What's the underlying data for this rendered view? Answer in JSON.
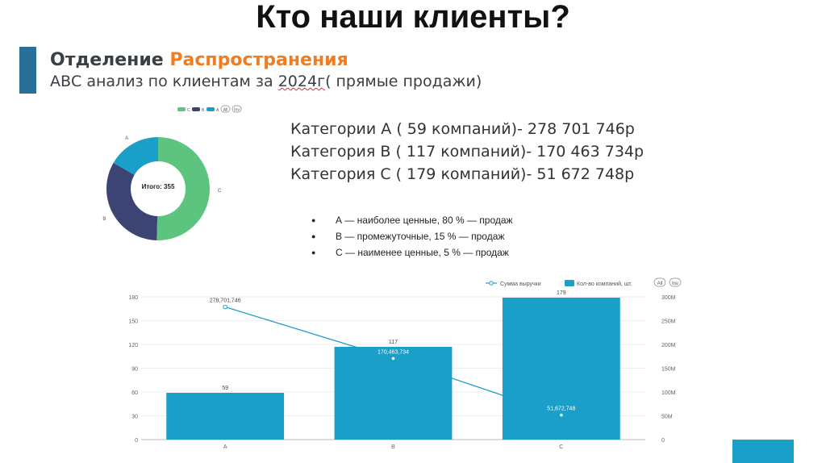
{
  "page": {
    "title": "Кто наши клиенты?",
    "dept_prefix": "Отделение ",
    "dept_highlight": "Распространения",
    "subtitle_start": "АВС анализ по клиентам за ",
    "subtitle_year": "2024г",
    "subtitle_end": "( прямые продажи)"
  },
  "categories_text": [
    "Категории А ( 59 компаний)- 278 701 746р",
    "Категория В ( 117 компаний)- 170 463 734р",
    "Категория С ( 179 компаний)- 51 672 748р"
  ],
  "bullets": [
    "А — наиболее ценные, 80 % — продаж",
    "В — промежуточные, 15 % — продаж",
    "С — наименее ценные, 5 % — продаж"
  ],
  "colors": {
    "accent": "#2a6f9a",
    "highlight": "#ef7d22",
    "pie_c": "#5cc47f",
    "pie_b": "#3b4472",
    "pie_a": "#1aa0c8",
    "bar": "#1aa0c8",
    "line": "#1aa0c8"
  },
  "chart_data": [
    {
      "type": "pie",
      "center_label": "Итого: 355",
      "legend": [
        "C",
        "B",
        "A",
        "All",
        "Inv"
      ],
      "legend_placement": "top",
      "slices": [
        {
          "label": "C",
          "value": 179
        },
        {
          "label": "B",
          "value": 117
        },
        {
          "label": "A",
          "value": 59
        }
      ]
    },
    {
      "type": "bar",
      "categories": [
        "A",
        "B",
        "C"
      ],
      "legend": [
        "Сумма выручки",
        "Кол-во компаний, шт.",
        "All",
        "Inv"
      ],
      "legend_placement": "top-right",
      "series": [
        {
          "name": "Кол-во компаний, шт.",
          "type": "bar",
          "axis": "left",
          "values": [
            59,
            117,
            179
          ],
          "labels": [
            "59",
            "117",
            "179"
          ]
        },
        {
          "name": "Сумма выручки",
          "type": "line",
          "axis": "right",
          "values": [
            278701746,
            170463734,
            51672748
          ],
          "labels": [
            "278,701,746",
            "170,463,734",
            "51,672,748"
          ]
        }
      ],
      "y_left": {
        "ticks": [
          "0",
          "30",
          "60",
          "90",
          "120",
          "150",
          "180"
        ],
        "range": [
          0,
          180
        ]
      },
      "y_right": {
        "ticks": [
          "0",
          "50M",
          "100M",
          "150M",
          "200M",
          "250M",
          "300M"
        ],
        "range": [
          0,
          300000000
        ]
      },
      "grid": true
    }
  ]
}
